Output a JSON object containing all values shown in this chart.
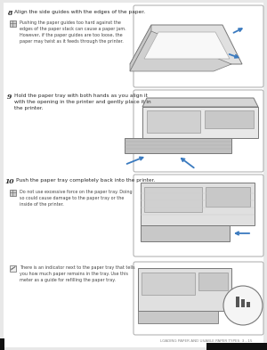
{
  "bg_color": "#e8e8e8",
  "page_bg": "#ffffff",
  "text_color": "#2a2a2a",
  "gray_text": "#444444",
  "footer_text": "LOADING PAPER AND USABLE PAPER TYPES  3 - 15",
  "step8_num": "8",
  "step8_head": "Align the side guides with the edges of the paper.",
  "step8_body": "Pushing the paper guides too hard against the\nedges of the paper stack can cause a paper jam.\nHowever, if the paper guides are too loose, the\npaper may twist as it feeds through the printer.",
  "step9_num": "9",
  "step9_head": "Hold the paper tray with both hands as you align it\nwith the opening in the printer and gently place it in\nthe printer.",
  "step10_num": "10",
  "step10_head": "Push the paper tray completely back into the printer.",
  "step10_body": "Do not use excessive force on the paper tray. Doing\nso could cause damage to the paper tray or the\ninside of the printer.",
  "note_body": "There is an indicator next to the paper tray that tells\nyou how much paper remains in the tray. Use this\nmeter as a guide for refilling the paper tray.",
  "box_border": "#aaaaaa",
  "arrow_color": "#3a7abf",
  "fig_w": 3.0,
  "fig_h": 3.93,
  "dpi": 100
}
